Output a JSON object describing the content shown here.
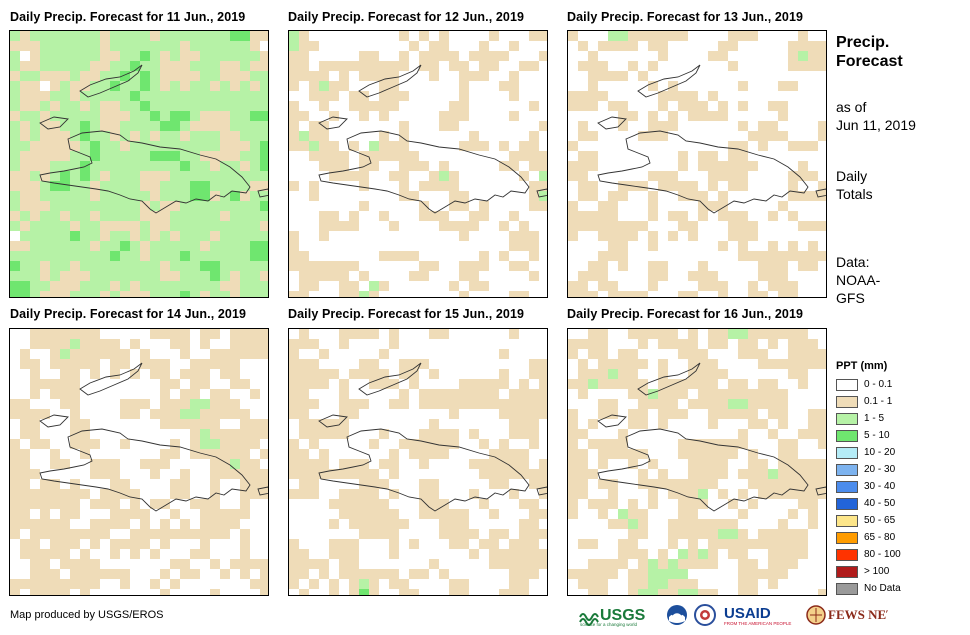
{
  "panels": [
    {
      "title": "Daily Precip. Forecast for 11 Jun., 2019"
    },
    {
      "title": "Daily Precip. Forecast for 12 Jun., 2019"
    },
    {
      "title": "Daily Precip. Forecast for 13 Jun., 2019"
    },
    {
      "title": "Daily Precip. Forecast for 14 Jun., 2019"
    },
    {
      "title": "Daily Precip. Forecast for 15 Jun., 2019"
    },
    {
      "title": "Daily Precip. Forecast for 16 Jun., 2019"
    }
  ],
  "side": {
    "title_line1": "Precip.",
    "title_line2": "Forecast",
    "asof_line1": "as of",
    "asof_line2": "Jun 11, 2019",
    "totals_line1": "Daily",
    "totals_line2": "Totals",
    "data_line1": "Data:",
    "data_line2": "NOAA-",
    "data_line3": "GFS"
  },
  "legend": {
    "title": "PPT (mm)",
    "items": [
      {
        "label": "0 - 0.1",
        "color": "#ffffff"
      },
      {
        "label": "0.1 - 1",
        "color": "#efdcb8"
      },
      {
        "label": "1 - 5",
        "color": "#b6f2a6"
      },
      {
        "label": "5 - 10",
        "color": "#6fe66f"
      },
      {
        "label": "10 - 20",
        "color": "#b5ecf7"
      },
      {
        "label": "20 - 30",
        "color": "#7db3ef"
      },
      {
        "label": "30 - 40",
        "color": "#4c8cec"
      },
      {
        "label": "40 - 50",
        "color": "#2264d9"
      },
      {
        "label": "50 - 65",
        "color": "#fde68a"
      },
      {
        "label": "65 - 80",
        "color": "#ff9c00"
      },
      {
        "label": "80 - 100",
        "color": "#ff3300"
      },
      {
        "label": "> 100",
        "color": "#b01b1b"
      },
      {
        "label": "No Data",
        "color": "#9a9a9a"
      }
    ]
  },
  "footer": {
    "credit": "Map produced by USGS/EROS"
  },
  "logos": {
    "usgs": "USGS",
    "usgs_tagline": "science for a changing world",
    "usaid": "USAID",
    "usaid_tagline": "FROM THE AMERICAN PEOPLE",
    "fewsnet": "FEWS NET"
  }
}
